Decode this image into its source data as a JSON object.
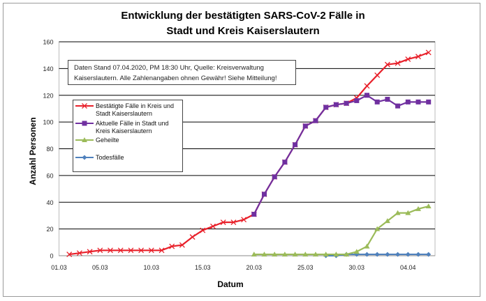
{
  "chart_data": {
    "type": "line",
    "title": "Entwicklung der bestätigten SARS-CoV-2 Fälle in Stadt und Kreis Kaiserslautern",
    "title_lines": [
      "Entwicklung der bestätigten SARS-CoV-2 Fälle in",
      "Stadt und Kreis Kaiserslautern"
    ],
    "xlabel": "Datum",
    "ylabel": "Anzahl Personen",
    "ylim": [
      0,
      160
    ],
    "yticks": [
      0,
      20,
      40,
      60,
      80,
      100,
      120,
      140,
      160
    ],
    "xlim": [
      "01.03",
      "06.04"
    ],
    "xtick_labels": [
      "01.03",
      "05.03",
      "10.03",
      "15.03",
      "20.03",
      "25.03",
      "30.03",
      "04.04"
    ],
    "grid": "horizontal",
    "legend_placement": "left",
    "annotation": "Daten Stand 07.04.2020, PM 18:30 Uhr, Quelle: Kreisverwaltung Kaiserslautern. Alle Zahlenangaben ohnen Gewähr! Siehe Mitteilung!",
    "annotation_lines": [
      "Daten Stand 07.04.2020, PM 18:30 Uhr, Quelle: Kreisverwaltung",
      "Kaiserslautern. Alle Zahlenangaben ohnen Gewähr! Siehe Mitteilung!"
    ],
    "x": [
      "02.03",
      "03.03",
      "04.03",
      "05.03",
      "06.03",
      "07.03",
      "08.03",
      "09.03",
      "10.03",
      "11.03",
      "12.03",
      "13.03",
      "14.03",
      "15.03",
      "16.03",
      "17.03",
      "18.03",
      "19.03",
      "20.03",
      "21.03",
      "22.03",
      "23.03",
      "24.03",
      "25.03",
      "26.03",
      "27.03",
      "28.03",
      "29.03",
      "30.03",
      "31.03",
      "01.04",
      "02.04",
      "03.04",
      "04.04",
      "05.04",
      "06.04"
    ],
    "series": [
      {
        "name": "Bestätigte Fälle in Kreis und Stadt Kaiserslautern",
        "legend_lines": [
          "Bestätigte Fälle in Kreis und",
          "Stadt Kaiserslautern"
        ],
        "color": "#e8202a",
        "marker": "x",
        "values": [
          1,
          2,
          3,
          4,
          4,
          4,
          4,
          4,
          4,
          4,
          7,
          8,
          14,
          19,
          22,
          25,
          25,
          27,
          31,
          46,
          59,
          70,
          83,
          97,
          101,
          111,
          113,
          114,
          118,
          127,
          135,
          143,
          144,
          147,
          149,
          152
        ]
      },
      {
        "name": "Aktuelle Fälle in Stadt und Kreis Kaiserslautern",
        "legend_lines": [
          "Aktuelle Fälle in Stadt und",
          "Kreis Kaiserslautern"
        ],
        "color": "#7030a0",
        "marker": "square",
        "values": [
          null,
          null,
          null,
          null,
          null,
          null,
          null,
          null,
          null,
          null,
          null,
          null,
          null,
          null,
          null,
          null,
          null,
          null,
          31,
          46,
          59,
          70,
          83,
          97,
          101,
          111,
          113,
          114,
          116,
          120,
          115,
          117,
          112,
          115,
          115,
          115
        ]
      },
      {
        "name": "Geheilte",
        "legend_lines": [
          "Geheilte"
        ],
        "color": "#9bbb59",
        "marker": "triangle",
        "values": [
          null,
          null,
          null,
          null,
          null,
          null,
          null,
          null,
          null,
          null,
          null,
          null,
          null,
          null,
          null,
          null,
          null,
          null,
          1,
          1,
          1,
          1,
          1,
          1,
          1,
          1,
          1,
          1,
          3,
          7,
          20,
          26,
          32,
          32,
          35,
          37
        ]
      },
      {
        "name": "Todesfälle",
        "legend_lines": [
          "Todesfälle"
        ],
        "color": "#4f81bd",
        "marker": "diamond",
        "values": [
          null,
          null,
          null,
          null,
          null,
          null,
          null,
          null,
          null,
          null,
          null,
          null,
          null,
          null,
          null,
          null,
          null,
          null,
          null,
          null,
          null,
          null,
          null,
          null,
          null,
          0,
          0,
          1,
          1,
          1,
          1,
          1,
          1,
          1,
          1,
          1
        ]
      }
    ]
  }
}
